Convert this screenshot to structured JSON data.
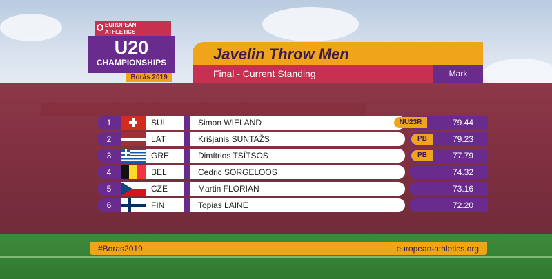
{
  "logo": {
    "org_line1": "EUROPEAN",
    "org_line2": "ATHLETICS",
    "event": "U20",
    "championships": "CHAMPIONSHIPS",
    "location_year": "Borås 2019"
  },
  "header": {
    "title": "Javelin Throw Men",
    "subtitle": "Final - Current Standing",
    "mark_label": "Mark"
  },
  "results": [
    {
      "rank": "1",
      "nat": "SUI",
      "name": "Simon WIELAND",
      "badge": "NU23R",
      "mark": "79.44"
    },
    {
      "rank": "2",
      "nat": "LAT",
      "name": "Krišjanis SUNTAŽS",
      "badge": "PB",
      "mark": "79.23"
    },
    {
      "rank": "3",
      "nat": "GRE",
      "name": "Dimítrios TSÍTSOS",
      "badge": "PB",
      "mark": "77.79"
    },
    {
      "rank": "4",
      "nat": "BEL",
      "name": "Cedric SORGELOOS",
      "badge": "",
      "mark": "74.32"
    },
    {
      "rank": "5",
      "nat": "CZE",
      "name": "Martin FLORIAN",
      "badge": "",
      "mark": "73.16"
    },
    {
      "rank": "6",
      "nat": "FIN",
      "name": "Topias LAINE",
      "badge": "",
      "mark": "72.20"
    }
  ],
  "flags": [
    "switzerland-flag-icon",
    "latvia-flag-icon",
    "greece-flag-icon",
    "belgium-flag-icon",
    "czechia-flag-icon",
    "finland-flag-icon"
  ],
  "footer": {
    "hashtag": "#Boras2019",
    "website": "european-athletics.org"
  },
  "colors": {
    "purple": "#6a2b8f",
    "red": "#c8304f",
    "gold": "#f0a418"
  }
}
